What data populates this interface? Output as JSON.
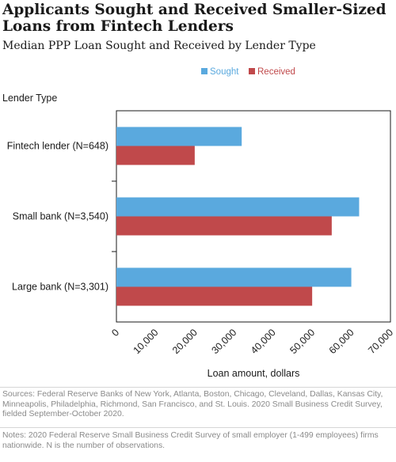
{
  "title": "Applicants Sought and Received Smaller-Sized Loans from Fintech Lenders",
  "subtitle": "Median PPP Loan Sought and Received by Lender Type",
  "chart_data": {
    "type": "bar",
    "orientation": "horizontal",
    "ylabel": "Lender Type",
    "xlabel": "Loan amount, dollars",
    "categories": [
      "Fintech lender (N=648)",
      "Small bank (N=3,540)",
      "Large bank (N=3,301)"
    ],
    "series": [
      {
        "name": "Sought",
        "color": "#5aa9de",
        "values": [
          32000,
          62000,
          60000
        ]
      },
      {
        "name": "Received",
        "color": "#c0494b",
        "values": [
          20000,
          55000,
          50000
        ]
      }
    ],
    "xlim": [
      0,
      70000
    ],
    "xticks": [
      0,
      10000,
      20000,
      30000,
      40000,
      50000,
      60000,
      70000
    ],
    "xtick_labels": [
      "0",
      "10,000",
      "20,000",
      "30,000",
      "40,000",
      "50,000",
      "60,000",
      "70,000"
    ],
    "grid": false,
    "legend_position": "top-right"
  },
  "sources": "Sources: Federal Reserve Banks of New York, Atlanta, Boston, Chicago, Cleveland, Dallas, Kansas City, Minneapolis, Philadelphia, Richmond, San Francisco, and St. Louis. 2020 Small Business Credit Survey, fielded September-October 2020.",
  "notes": "Notes: 2020 Federal Reserve Small Business Credit Survey of small employer (1-499 employees) firms nationwide. N is the number of observations."
}
